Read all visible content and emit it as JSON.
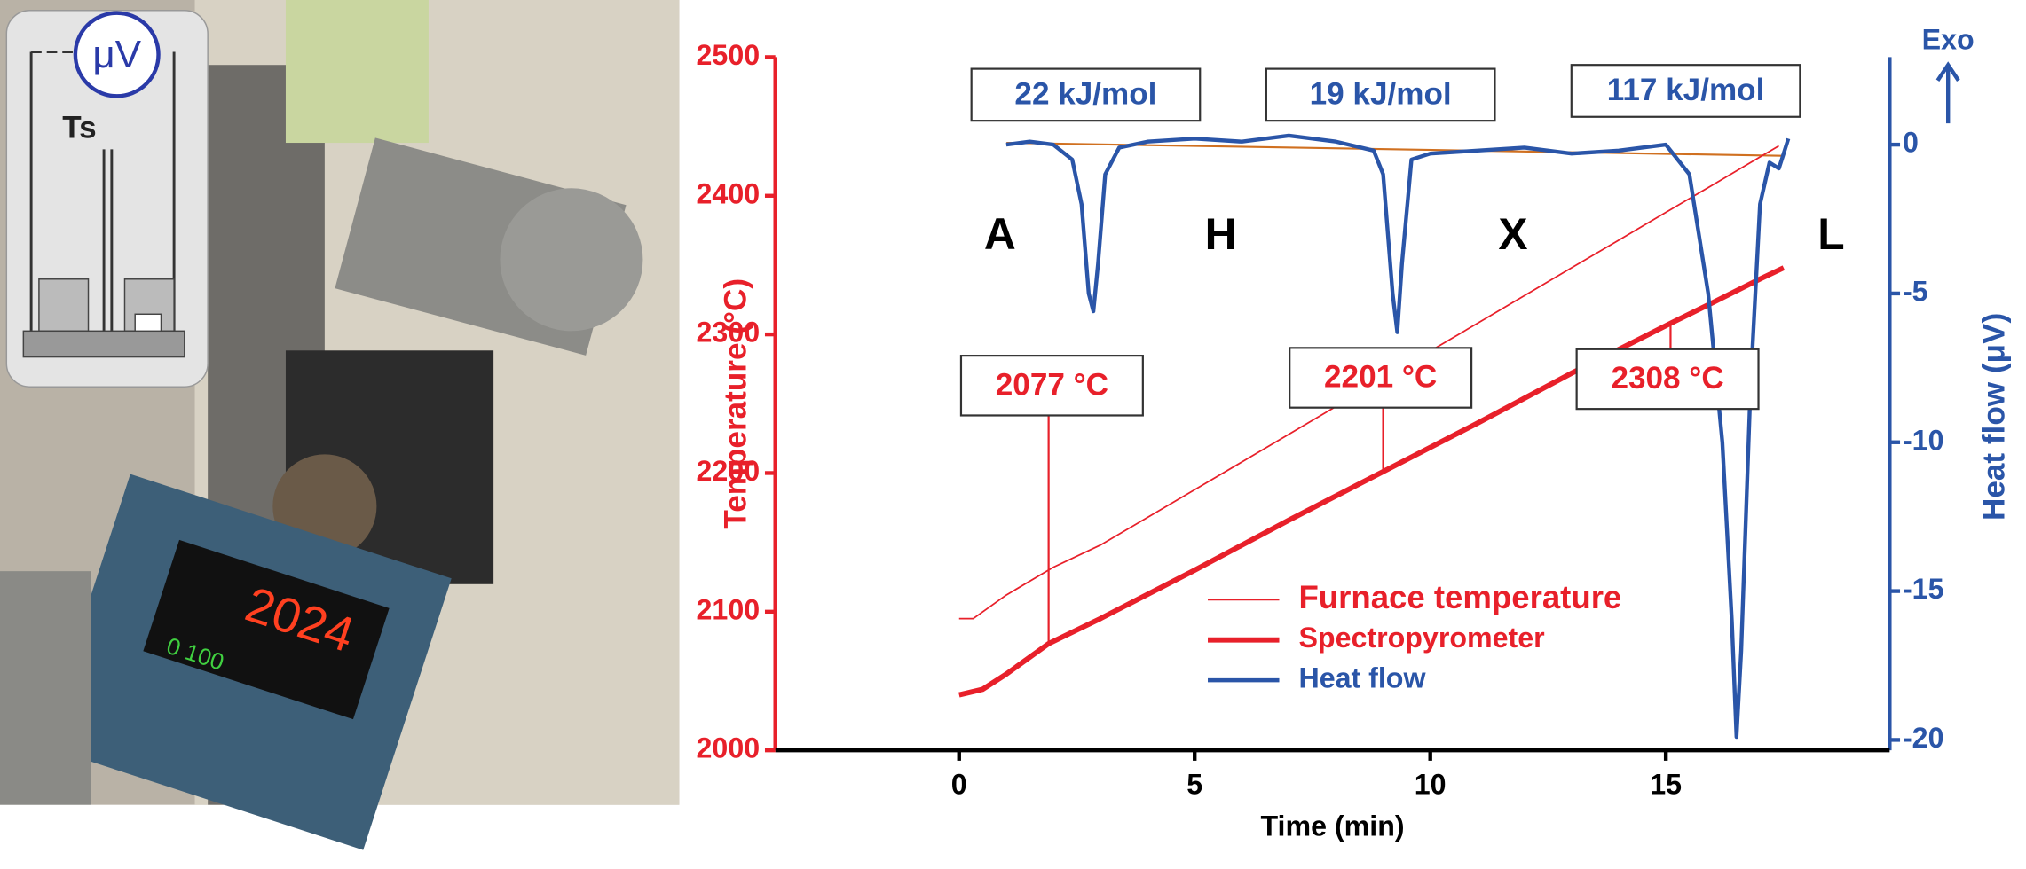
{
  "photo": {
    "inset_meter": "μV",
    "inset_label": "Ts",
    "display": "2024",
    "display_small": "0 100"
  },
  "chart_data": {
    "type": "line",
    "x_label": "Time (min)",
    "y_label": "Temperature (°C)",
    "y2_label": "Heat flow (μV)",
    "y2_direction": "Exo",
    "xlim": [
      -3.9,
      19.75
    ],
    "xticks": [
      0,
      5,
      10,
      15
    ],
    "ylim": [
      2000,
      2500
    ],
    "yticks": [
      2000,
      2100,
      2200,
      2300,
      2400,
      2500
    ],
    "y2lim": [
      -20.35,
      2.94
    ],
    "y2ticks": [
      -20,
      -15,
      -10,
      -5,
      0
    ],
    "series": [
      {
        "name": "Furnace temperature",
        "color": "#e8202a",
        "width": 1.2,
        "x": [
          0,
          0.3,
          1,
          2,
          3,
          4,
          5,
          6,
          7,
          8,
          9,
          10,
          11,
          12,
          13,
          14,
          15,
          16,
          17,
          17.4
        ],
        "values": [
          2095,
          2095,
          2112,
          2132,
          2148,
          2168,
          2188,
          2208,
          2228,
          2248,
          2268,
          2288,
          2308,
          2328,
          2348,
          2368,
          2388,
          2408,
          2428,
          2436
        ]
      },
      {
        "name": "Spectropyrometer",
        "color": "#e8202a",
        "width": 4,
        "x": [
          0,
          0.5,
          1,
          1.9,
          3,
          5,
          7,
          9,
          11,
          13,
          15.1,
          16,
          17,
          17.5
        ],
        "values": [
          2040,
          2044,
          2055,
          2077,
          2095,
          2130,
          2166,
          2201,
          2236,
          2272,
          2308,
          2323,
          2340,
          2348
        ]
      },
      {
        "name": "Heat flow",
        "color": "#2a55a8",
        "width": 3,
        "axis": "y2",
        "x": [
          1,
          1.5,
          2,
          2.4,
          2.6,
          2.75,
          2.85,
          2.95,
          3.1,
          3.4,
          4,
          5,
          6,
          7,
          8,
          8.8,
          9,
          9.2,
          9.3,
          9.4,
          9.6,
          10,
          11,
          12,
          13,
          14,
          15,
          15.5,
          15.9,
          16.2,
          16.4,
          16.5,
          16.6,
          16.8,
          17,
          17.2,
          17.4,
          17.5,
          17.6
        ],
        "values": [
          0,
          0.1,
          0,
          -0.5,
          -2,
          -5,
          -5.6,
          -4,
          -1,
          -0.1,
          0.1,
          0.2,
          0.1,
          0.3,
          0.1,
          -0.2,
          -1,
          -5,
          -6.3,
          -4,
          -0.5,
          -0.3,
          -0.2,
          -0.1,
          -0.3,
          -0.2,
          0,
          -1,
          -5,
          -10,
          -16,
          -19.9,
          -17,
          -8,
          -2,
          -0.6,
          -0.8,
          -0.3,
          0.2
        ]
      }
    ],
    "enthalpy_labels": [
      "22 kJ/mol",
      "19 kJ/mol",
      "117 kJ/mol"
    ],
    "phase_labels": [
      "A",
      "H",
      "X",
      "L"
    ],
    "temperature_labels": [
      {
        "value": 2077,
        "label": "2077 °C"
      },
      {
        "value": 2201,
        "label": "2201 °C"
      },
      {
        "value": 2308,
        "label": "2308 °C"
      }
    ]
  }
}
